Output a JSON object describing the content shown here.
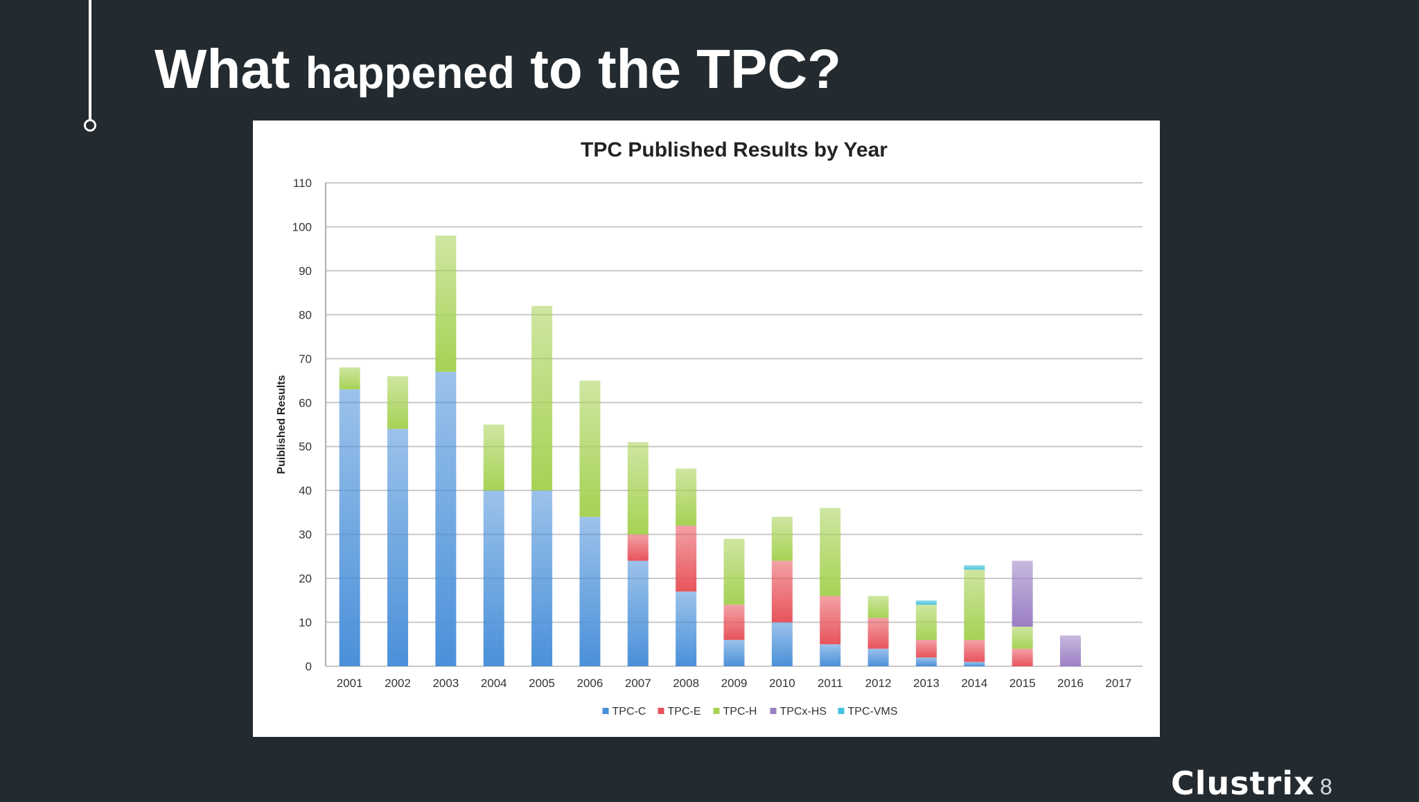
{
  "slide": {
    "title_part1": "What ",
    "title_part2": "happened",
    "title_part3": " to the TPC?",
    "logo_text": "Clustrix",
    "page_number": "8"
  },
  "colors": {
    "background": "#232b30",
    "TPC-C": "#4a90d9",
    "TPC-E": "#e8545c",
    "TPC-H": "#a6d255",
    "TPCx-HS": "#9b7fc4",
    "TPC-VMS": "#45c2dd"
  },
  "chart_data": {
    "type": "bar",
    "stacked": true,
    "title": "TPC Published Results by Year",
    "xlabel": "",
    "ylabel": "Puiblished Results",
    "ylim": [
      0,
      110
    ],
    "yticks": [
      0,
      10,
      20,
      30,
      40,
      50,
      60,
      70,
      80,
      90,
      100,
      110
    ],
    "grid": true,
    "legend_position": "bottom",
    "categories": [
      "2001",
      "2002",
      "2003",
      "2004",
      "2005",
      "2006",
      "2007",
      "2008",
      "2009",
      "2010",
      "2011",
      "2012",
      "2013",
      "2014",
      "2015",
      "2016",
      "2017"
    ],
    "series": [
      {
        "name": "TPC-C",
        "values": [
          63,
          54,
          67,
          40,
          40,
          34,
          24,
          17,
          6,
          10,
          5,
          4,
          2,
          1,
          0,
          0,
          0
        ]
      },
      {
        "name": "TPC-E",
        "values": [
          0,
          0,
          0,
          0,
          0,
          0,
          6,
          15,
          8,
          14,
          11,
          7,
          4,
          5,
          4,
          0,
          0
        ]
      },
      {
        "name": "TPC-H",
        "values": [
          5,
          12,
          31,
          15,
          42,
          31,
          21,
          13,
          15,
          10,
          20,
          5,
          8,
          16,
          5,
          0,
          0
        ]
      },
      {
        "name": "TPCx-HS",
        "values": [
          0,
          0,
          0,
          0,
          0,
          0,
          0,
          0,
          0,
          0,
          0,
          0,
          0,
          0,
          15,
          7,
          0
        ]
      },
      {
        "name": "TPC-VMS",
        "values": [
          0,
          0,
          0,
          0,
          0,
          0,
          0,
          0,
          0,
          0,
          0,
          0,
          1,
          1,
          0,
          0,
          0
        ]
      }
    ]
  }
}
